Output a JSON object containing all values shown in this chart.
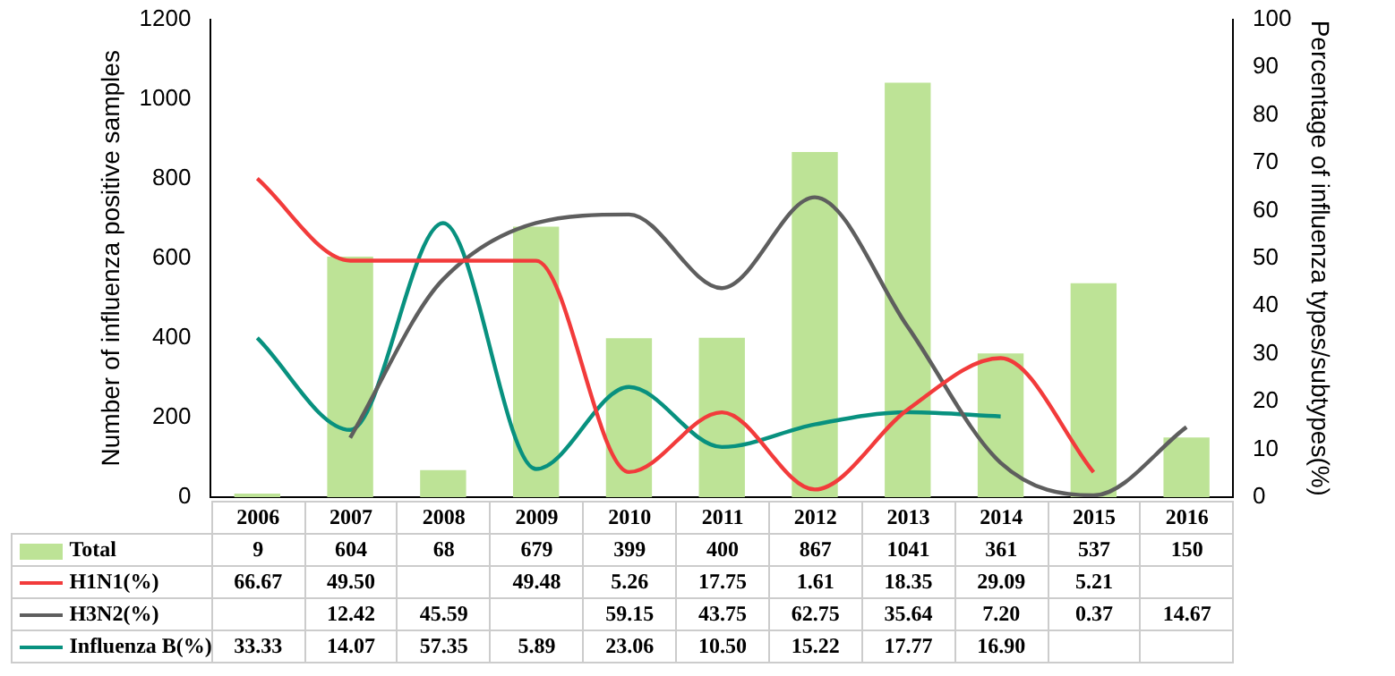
{
  "chart_data": {
    "type": "bar",
    "ylabel": "Number of influenza positive samples",
    "y2label": "Percentage of influenza types/subtypes(%)",
    "categories": [
      "2006",
      "2007",
      "2008",
      "2009",
      "2010",
      "2011",
      "2012",
      "2013",
      "2014",
      "2015",
      "2016"
    ],
    "series": [
      {
        "name": "Total",
        "color": "#bde396",
        "values": [
          9,
          604,
          68,
          679,
          399,
          400,
          867,
          1041,
          361,
          537,
          150
        ],
        "value_labels": [
          "9",
          "604",
          "68",
          "679",
          "399",
          "400",
          "867",
          "1041",
          "361",
          "537",
          "150"
        ]
      },
      {
        "name": "H1N1(%)",
        "type": "line",
        "axis": "y2",
        "color": "#f23b3b",
        "values": [
          66.67,
          49.5,
          null,
          49.48,
          5.26,
          17.75,
          1.61,
          18.35,
          29.09,
          5.21,
          null
        ],
        "value_labels": [
          "66.67",
          "49.50",
          null,
          "49.48",
          "5.26",
          "17.75",
          "1.61",
          "18.35",
          "29.09",
          "5.21",
          null
        ]
      },
      {
        "name": "H3N2(%)",
        "type": "line",
        "axis": "y2",
        "color": "#5e5e5e",
        "values": [
          null,
          12.42,
          45.59,
          null,
          59.15,
          43.75,
          62.75,
          35.64,
          7.2,
          0.37,
          14.67
        ],
        "value_labels": [
          null,
          "12.42",
          "45.59",
          null,
          "59.15",
          "43.75",
          "62.75",
          "35.64",
          "7.20",
          "0.37",
          "14.67"
        ]
      },
      {
        "name": "Influenza B(%)",
        "type": "line",
        "axis": "y2",
        "color": "#08917f",
        "values": [
          33.33,
          14.07,
          57.35,
          5.89,
          23.06,
          10.5,
          15.22,
          17.77,
          16.9,
          null,
          null
        ],
        "value_labels": [
          "33.33",
          "14.07",
          "57.35",
          "5.89",
          "23.06",
          "10.50",
          "15.22",
          "17.77",
          "16.90",
          null,
          null
        ]
      }
    ],
    "ylim": [
      0,
      1200
    ],
    "yticks": [
      0,
      200,
      400,
      600,
      800,
      1000,
      1200
    ],
    "y2lim": [
      0,
      100
    ],
    "y2ticks": [
      0,
      10,
      20,
      30,
      40,
      50,
      60,
      70,
      80,
      90,
      100
    ],
    "grid": false,
    "legend": "bottom",
    "marker": "none",
    "line_style": "solid",
    "data_labels": true,
    "tick_labels": "y"
  }
}
